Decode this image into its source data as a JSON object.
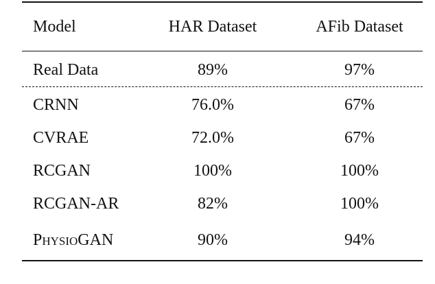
{
  "table": {
    "header": [
      "Model",
      "HAR Dataset",
      "AFib Dataset"
    ],
    "rows": [
      [
        "Real Data",
        "89%",
        "97%"
      ],
      [
        "CRNN",
        "76.0%",
        "67%"
      ],
      [
        "CVRAE",
        "72.0%",
        "67%"
      ],
      [
        "RCGAN",
        "100%",
        "100%"
      ],
      [
        "RCGAN-AR",
        "82%",
        "100%"
      ],
      [
        "PhysioGAN",
        "90%",
        "94%"
      ]
    ]
  }
}
